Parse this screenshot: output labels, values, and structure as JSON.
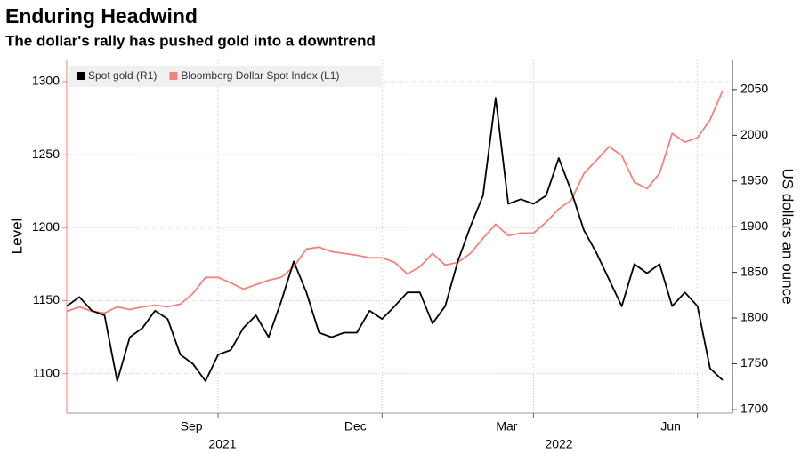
{
  "chart_data": {
    "type": "line",
    "title": "Enduring Headwind",
    "subtitle": "The dollar's rally has pushed gold into a downtrend",
    "y_label": "Level",
    "y2_label": "US dollars an ounce",
    "categories": [
      null,
      null,
      null,
      null,
      null,
      null,
      null,
      null,
      null,
      null,
      null,
      null,
      "Sep",
      null,
      null,
      null,
      null,
      null,
      null,
      null,
      null,
      null,
      null,
      null,
      null,
      "Dec",
      null,
      null,
      null,
      null,
      null,
      null,
      null,
      null,
      null,
      null,
      null,
      "Mar",
      null,
      null,
      null,
      null,
      null,
      null,
      null,
      null,
      null,
      null,
      null,
      null,
      "Jun",
      null,
      null
    ],
    "x_group_labels": [
      "2021",
      "2022"
    ],
    "series": [
      {
        "name": "Spot gold (R1)",
        "color": "#000000",
        "axis": "y2",
        "values": [
          1813,
          1823,
          1808,
          1803,
          1731,
          1779,
          1789,
          1808,
          1799,
          1760,
          1750,
          1731,
          1760,
          1765,
          1789,
          1803,
          1779,
          1818,
          1862,
          1828,
          1784,
          1779,
          1784,
          1784,
          1808,
          1799,
          1813,
          1828,
          1828,
          1794,
          1813,
          1862,
          1900,
          1934,
          2041,
          1925,
          1930,
          1925,
          1934,
          1975,
          1939,
          1896,
          1871,
          1842,
          1813,
          1859,
          1849,
          1859,
          1813,
          1828,
          1813,
          1745,
          1732
        ]
      },
      {
        "name": "Bloomberg Dollar Spot Index (L1)",
        "color": "#f4827c",
        "axis": "y",
        "values": [
          1142.7,
          1145.7,
          1142.7,
          1141.5,
          1145.7,
          1143.9,
          1145.7,
          1146.9,
          1145.7,
          1147.6,
          1154.9,
          1165.9,
          1165.9,
          1162.2,
          1157.9,
          1161.0,
          1164.0,
          1165.9,
          1173.2,
          1185.4,
          1186.6,
          1183.5,
          1182.3,
          1181.1,
          1179.3,
          1179.3,
          1176.2,
          1168.3,
          1173.2,
          1182.3,
          1174.4,
          1176.2,
          1182.3,
          1192.7,
          1202.4,
          1194.5,
          1196.3,
          1196.3,
          1203.7,
          1212.8,
          1218.9,
          1237.2,
          1246.3,
          1255.5,
          1249.4,
          1231.1,
          1226.8,
          1237.2,
          1264.6,
          1258.5,
          1261.6,
          1273.8,
          1293.9
        ]
      }
    ],
    "ylim": [
      1073,
      1314.6
    ],
    "yticks": [
      1100,
      1150,
      1200,
      1250,
      1300
    ],
    "y2lim": [
      1696,
      2082
    ],
    "y2ticks": [
      1700,
      1750,
      1800,
      1850,
      1900,
      1950,
      2000,
      2050
    ],
    "grid": true,
    "legend": "top-left"
  }
}
